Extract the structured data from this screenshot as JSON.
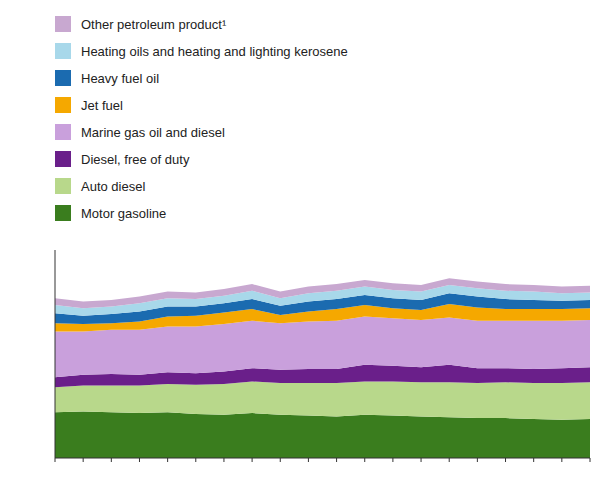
{
  "chart_data": {
    "type": "area",
    "stacked": true,
    "legend": "top-left",
    "tick_labels": false,
    "categories": [
      null,
      null,
      null,
      null,
      null,
      null,
      null,
      null,
      null,
      null,
      null,
      null,
      null,
      null,
      null,
      null,
      null,
      null,
      null,
      null
    ],
    "ylim": [
      0,
      250
    ],
    "series": [
      {
        "name": "Motor gasoline",
        "color": "#3a7d1e",
        "values": [
          55,
          56,
          55,
          54,
          55,
          53,
          52,
          54,
          52,
          51,
          50,
          52,
          51,
          50,
          49,
          48,
          48,
          47,
          46,
          47
        ]
      },
      {
        "name": "Auto diesel",
        "color": "#b8d88b",
        "values": [
          30,
          31,
          32,
          33,
          34,
          35,
          37,
          38,
          38,
          39,
          40,
          40,
          41,
          41,
          42,
          42,
          43,
          43,
          44,
          44
        ]
      },
      {
        "name": "Diesel, free of duty",
        "color": "#6a1f8a",
        "values": [
          12,
          13,
          14,
          13,
          14,
          14,
          15,
          16,
          16,
          17,
          17,
          20,
          19,
          18,
          21,
          18,
          17,
          17,
          18,
          18
        ]
      },
      {
        "name": "Marine gas oil and diesel",
        "color": "#c9a0dc",
        "values": [
          55,
          52,
          53,
          54,
          55,
          56,
          57,
          57,
          56,
          57,
          58,
          58,
          57,
          57,
          57,
          57,
          57,
          58,
          57,
          57
        ]
      },
      {
        "name": "Jet fuel",
        "color": "#f5a800",
        "values": [
          10,
          9,
          8,
          10,
          12,
          13,
          14,
          14,
          10,
          12,
          14,
          14,
          12,
          12,
          16,
          16,
          14,
          14,
          14,
          14
        ]
      },
      {
        "name": "Heavy fuel oil",
        "color": "#1b6bb0",
        "values": [
          12,
          10,
          11,
          12,
          12,
          11,
          11,
          12,
          11,
          12,
          12,
          12,
          12,
          12,
          13,
          13,
          12,
          11,
          10,
          10
        ]
      },
      {
        "name": "Heating oils and heating and lighting kerosene",
        "color": "#a8d8ea",
        "values": [
          10,
          9,
          9,
          10,
          10,
          9,
          9,
          10,
          9,
          10,
          10,
          10,
          10,
          10,
          10,
          10,
          10,
          10,
          9,
          9
        ]
      },
      {
        "name": "Other petroleum product¹",
        "color": "#c8a8d0",
        "values": [
          8,
          8,
          8,
          8,
          8,
          8,
          8,
          8,
          8,
          8,
          8,
          8,
          8,
          8,
          8,
          8,
          8,
          8,
          8,
          8
        ]
      }
    ]
  }
}
